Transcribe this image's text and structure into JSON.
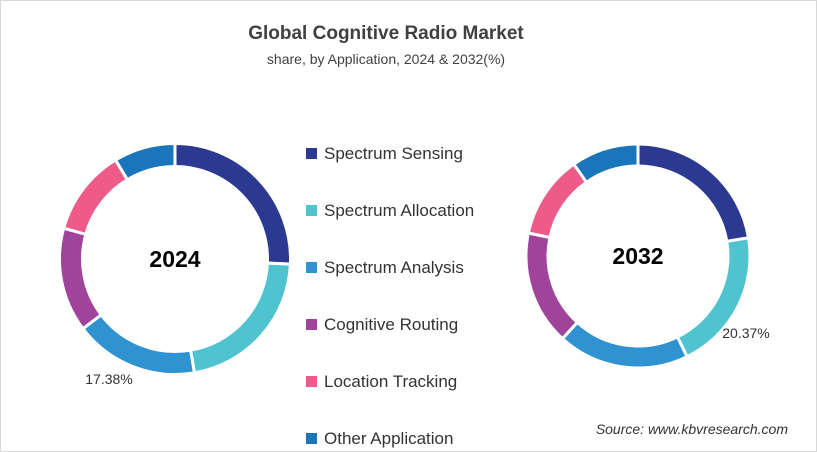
{
  "title": "Global Cognitive Radio Market",
  "subtitle": "share, by Application, 2024 & 2032(%)",
  "source": "Source: www.kbvresearch.com",
  "chart_data": {
    "type": "pie",
    "title": "Global Cognitive Radio Market",
    "subtitle": "share, by Application, 2024 & 2032(%)",
    "categories": [
      "Spectrum Sensing",
      "Spectrum Allocation",
      "Spectrum Analysis",
      "Cognitive Routing",
      "Location Tracking",
      "Other Application"
    ],
    "colors": [
      "#2b3990",
      "#4fc3cf",
      "#2e93d0",
      "#a0449b",
      "#ee5a8a",
      "#1a75bb"
    ],
    "legend_position": "center",
    "series": [
      {
        "name": "2024",
        "values": [
          25.7,
          21.6,
          17.38,
          14.6,
          12.1,
          8.6
        ],
        "labels": {
          "2": "17.38%"
        }
      },
      {
        "name": "2032",
        "values": [
          22.4,
          20.37,
          19.0,
          16.5,
          12.0,
          9.7
        ],
        "labels": {
          "1": "20.37%"
        }
      }
    ]
  }
}
